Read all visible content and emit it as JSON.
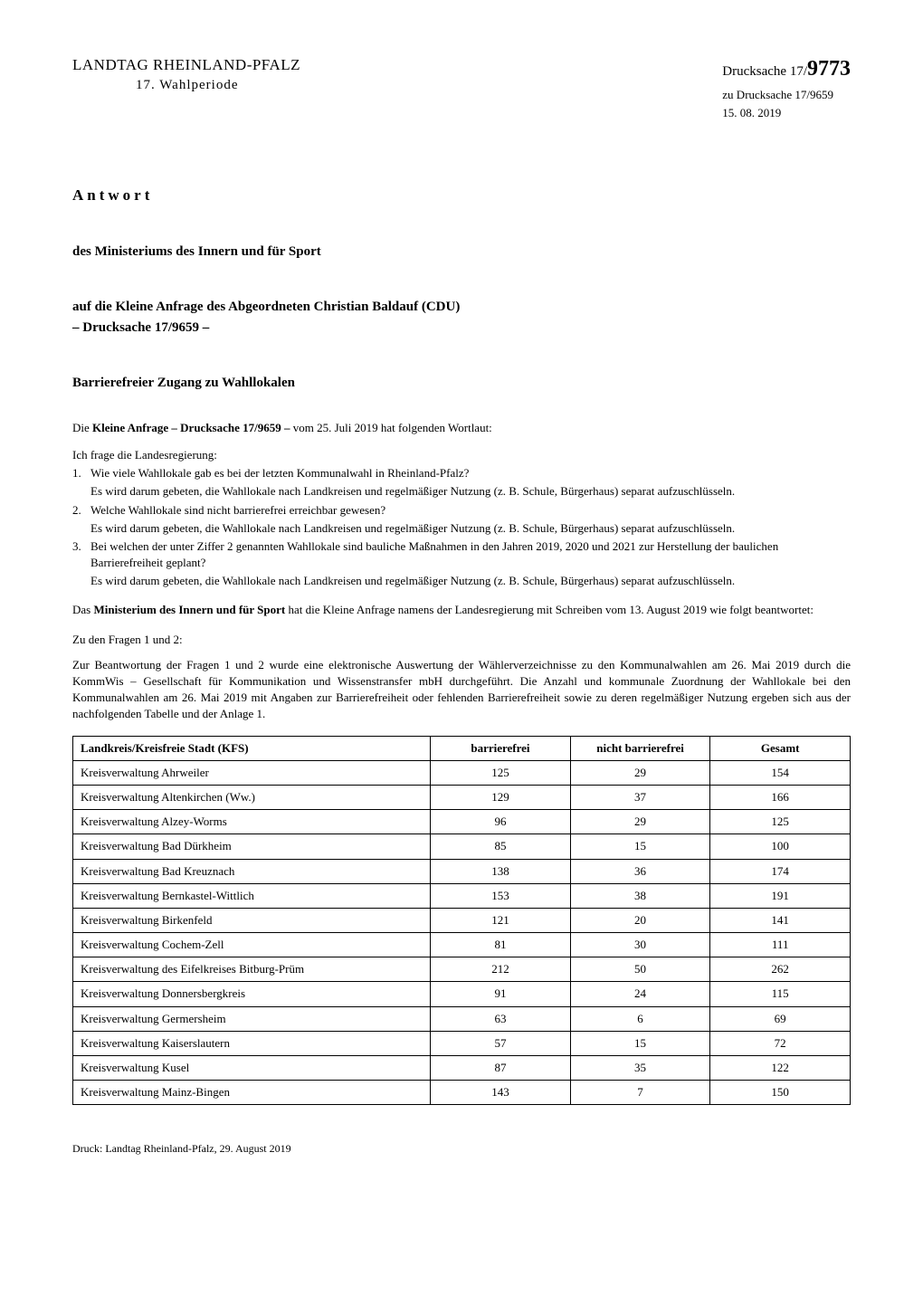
{
  "header": {
    "title": "LANDTAG RHEINLAND-PFALZ",
    "subtitle": "17. Wahlperiode",
    "drucksache_label": "Drucksache 17/",
    "drucksache_number": "9773",
    "drucksache_ref": "zu Drucksache 17/9659",
    "drucksache_date": "15. 08. 2019"
  },
  "sections": {
    "antwort": "Antwort",
    "ministry": "des Ministeriums des Innern und für Sport",
    "anfrage": "auf die Kleine Anfrage des Abgeordneten Christian Baldauf (CDU)",
    "drucksache_ref": "– Drucksache 17/9659 –",
    "title": "Barrierefreier Zugang zu Wahllokalen"
  },
  "intro": {
    "prefix": "Die ",
    "bold": "Kleine Anfrage – Drucksache 17/9659 –",
    "suffix": " vom 25. Juli 2019 hat folgenden Wortlaut:"
  },
  "frage_intro": "Ich frage die Landesregierung:",
  "fragen": [
    {
      "num": "1.",
      "main": "Wie viele Wahllokale gab es bei der letzten Kommunalwahl in Rheinland-Pfalz?",
      "sub": "Es wird darum gebeten, die Wahllokale nach Landkreisen und regelmäßiger Nutzung (z. B. Schule, Bürgerhaus) separat aufzuschlüsseln."
    },
    {
      "num": "2.",
      "main": "Welche Wahllokale sind nicht barrierefrei erreichbar gewesen?",
      "sub": "Es wird darum gebeten, die Wahllokale nach Landkreisen und regelmäßiger Nutzung (z. B. Schule, Bürgerhaus) separat aufzuschlüsseln."
    },
    {
      "num": "3.",
      "main": "Bei welchen der unter Ziffer 2 genannten Wahllokale sind bauliche Maßnahmen in den Jahren 2019, 2020 und 2021 zur Herstellung der baulichen Barrierefreiheit geplant?",
      "sub": "Es wird darum gebeten, die Wahllokale nach Landkreisen und regelmäßiger Nutzung (z. B. Schule, Bürgerhaus) separat aufzuschlüsseln."
    }
  ],
  "ministry_response": {
    "prefix": "Das ",
    "bold": "Ministerium des Innern und für Sport",
    "suffix": " hat die Kleine Anfrage namens der Landesregierung mit Schreiben vom 13. August 2019 wie folgt beantwortet:"
  },
  "zu_fragen": "Zu den Fragen 1 und 2:",
  "beantwortung": "Zur Beantwortung der Fragen 1 und 2 wurde eine elektronische Auswertung der Wählerverzeichnisse zu den Kommunalwahlen am 26. Mai 2019 durch die KommWis – Gesellschaft für Kommunikation und Wissenstransfer mbH durchgeführt. Die Anzahl und kommunale Zuordnung der Wahllokale bei den Kommunalwahlen am 26. Mai 2019 mit Angaben zur Barrierefreiheit oder fehlenden Barrierefreiheit sowie zu deren regelmäßiger Nutzung ergeben sich aus der nachfolgenden Tabelle und der Anlage 1.",
  "table": {
    "columns": [
      "Landkreis/Kreisfreie Stadt (KFS)",
      "barrierefrei",
      "nicht barrierefrei",
      "Gesamt"
    ],
    "col_widths": [
      "46%",
      "18%",
      "18%",
      "18%"
    ],
    "rows": [
      [
        "Kreisverwaltung Ahrweiler",
        "125",
        "29",
        "154"
      ],
      [
        "Kreisverwaltung Altenkirchen (Ww.)",
        "129",
        "37",
        "166"
      ],
      [
        "Kreisverwaltung Alzey-Worms",
        "96",
        "29",
        "125"
      ],
      [
        "Kreisverwaltung Bad Dürkheim",
        "85",
        "15",
        "100"
      ],
      [
        "Kreisverwaltung Bad Kreuznach",
        "138",
        "36",
        "174"
      ],
      [
        "Kreisverwaltung Bernkastel-Wittlich",
        "153",
        "38",
        "191"
      ],
      [
        "Kreisverwaltung Birkenfeld",
        "121",
        "20",
        "141"
      ],
      [
        "Kreisverwaltung Cochem-Zell",
        "81",
        "30",
        "111"
      ],
      [
        "Kreisverwaltung des Eifelkreises Bitburg-Prüm",
        "212",
        "50",
        "262"
      ],
      [
        "Kreisverwaltung Donnersbergkreis",
        "91",
        "24",
        "115"
      ],
      [
        "Kreisverwaltung Germersheim",
        "63",
        "6",
        "69"
      ],
      [
        "Kreisverwaltung Kaiserslautern",
        "57",
        "15",
        "72"
      ],
      [
        "Kreisverwaltung Kusel",
        "87",
        "35",
        "122"
      ],
      [
        "Kreisverwaltung Mainz-Bingen",
        "143",
        "7",
        "150"
      ]
    ]
  },
  "footer": "Druck: Landtag Rheinland-Pfalz, 29. August 2019"
}
